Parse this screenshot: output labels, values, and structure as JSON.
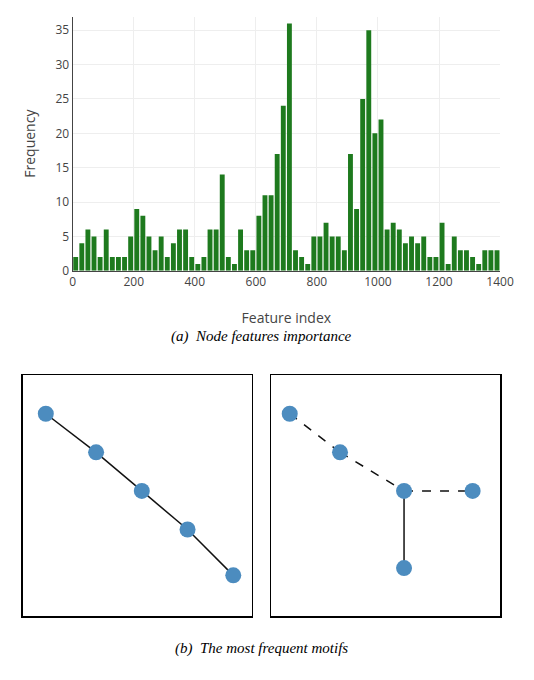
{
  "chart_data": [
    {
      "type": "bar",
      "title": "(a)  Node features importance",
      "x_label": "Feature index",
      "y_label": "Frequency",
      "color": "#1e7a1e",
      "x": [
        10,
        30,
        50,
        70,
        90,
        110,
        130,
        150,
        170,
        190,
        210,
        230,
        250,
        270,
        290,
        310,
        330,
        350,
        370,
        390,
        410,
        430,
        450,
        470,
        490,
        510,
        530,
        550,
        570,
        590,
        610,
        630,
        650,
        670,
        690,
        710,
        730,
        750,
        770,
        790,
        810,
        830,
        850,
        870,
        890,
        910,
        930,
        950,
        970,
        990,
        1010,
        1030,
        1050,
        1070,
        1090,
        1110,
        1130,
        1150,
        1170,
        1190,
        1210,
        1230,
        1250,
        1270,
        1290,
        1310,
        1330,
        1350,
        1370,
        1390
      ],
      "values": [
        2,
        4,
        6,
        5,
        2,
        6,
        2,
        2,
        2,
        5,
        9,
        8,
        5,
        3,
        5,
        2,
        4,
        6,
        6,
        2,
        1,
        2,
        6,
        6,
        14,
        2,
        1,
        6,
        3,
        3,
        8,
        11,
        11,
        17,
        24,
        36,
        3,
        2,
        1,
        5,
        5,
        7,
        5,
        5,
        3,
        17,
        9,
        25,
        35,
        20,
        22,
        6,
        7,
        6,
        4,
        5,
        4,
        5,
        2,
        2,
        7,
        1,
        5,
        3,
        3,
        2,
        1,
        3,
        3,
        3
      ],
      "xlim": [
        0,
        1400
      ],
      "ylim": [
        0,
        37
      ],
      "xticks": [
        0,
        200,
        400,
        600,
        800,
        1000,
        1200,
        1400
      ],
      "yticks": [
        0,
        5,
        10,
        15,
        20,
        25,
        30,
        35
      ],
      "grid": true
    },
    {
      "type": "network",
      "title": "(b)  The most frequent motifs",
      "xlim": [
        0,
        1
      ],
      "ylim": [
        0,
        1
      ],
      "tick_labels": false,
      "grid": false,
      "color": "#4c8cbf",
      "panels": [
        {
          "nodes": [
            [
              0.1,
              0.84
            ],
            [
              0.32,
              0.68
            ],
            [
              0.52,
              0.52
            ],
            [
              0.72,
              0.36
            ],
            [
              0.92,
              0.17
            ]
          ],
          "edges": [
            {
              "from": 0,
              "to": 1,
              "line_style": "solid",
              "color": "#111111"
            },
            {
              "from": 1,
              "to": 2,
              "line_style": "solid",
              "color": "#111111"
            },
            {
              "from": 2,
              "to": 3,
              "line_style": "solid",
              "color": "#111111"
            },
            {
              "from": 3,
              "to": 4,
              "line_style": "solid",
              "color": "#111111"
            }
          ]
        },
        {
          "nodes": [
            [
              0.08,
              0.84
            ],
            [
              0.3,
              0.68
            ],
            [
              0.58,
              0.52
            ],
            [
              0.88,
              0.52
            ],
            [
              0.58,
              0.2
            ]
          ],
          "edges": [
            {
              "from": 0,
              "to": 1,
              "line_style": "dashed",
              "color": "#111111"
            },
            {
              "from": 1,
              "to": 2,
              "line_style": "dashed",
              "color": "#111111"
            },
            {
              "from": 2,
              "to": 3,
              "line_style": "dashed",
              "color": "#111111"
            },
            {
              "from": 2,
              "to": 4,
              "line_style": "solid",
              "color": "#111111"
            }
          ]
        }
      ]
    }
  ]
}
